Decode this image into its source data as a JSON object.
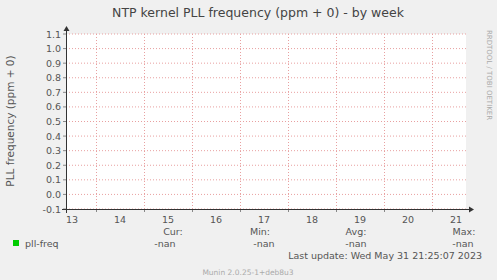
{
  "chart_data": {
    "type": "line",
    "title": "NTP kernel PLL frequency (ppm + 0) - by week",
    "y_label": "PLL frequency (ppm + 0)",
    "xlim": [
      13.375,
      21.71
    ],
    "xticks": [
      {
        "value": 13.5,
        "label": "13"
      },
      {
        "value": 14.5,
        "label": "14"
      },
      {
        "value": 15.5,
        "label": "15"
      },
      {
        "value": 16.5,
        "label": "16"
      },
      {
        "value": 17.5,
        "label": "17"
      },
      {
        "value": 18.5,
        "label": "18"
      },
      {
        "value": 19.5,
        "label": "19"
      },
      {
        "value": 20.5,
        "label": "20"
      },
      {
        "value": 21.5,
        "label": "21"
      }
    ],
    "xgrid": [
      14,
      15,
      16,
      17,
      18,
      19,
      20,
      21
    ],
    "ylim": [
      -0.1,
      1.1
    ],
    "yticks": [
      -0.1,
      {
        "value": 0,
        "label": "0.0"
      },
      0.1,
      0.2,
      0.3,
      0.4,
      0.5,
      0.6,
      0.7,
      0.8,
      0.9,
      {
        "value": 1,
        "label": "1.0"
      },
      1.1
    ],
    "grid": true,
    "stat_labels": [
      "Cur:",
      "Min:",
      "Avg:",
      "Max:"
    ],
    "series": [
      {
        "name": "pll-freq",
        "color": "#00CC00",
        "x": [],
        "values": [],
        "stats": [
          "-nan",
          "-nan",
          "-nan",
          "-nan"
        ]
      }
    ],
    "last_update": "Last update: Wed May 31 21:25:07 2023",
    "footer": "Munin 2.0.25-1+deb8u3",
    "watermark": "RRDTOOL / TOBI OETIKER"
  }
}
